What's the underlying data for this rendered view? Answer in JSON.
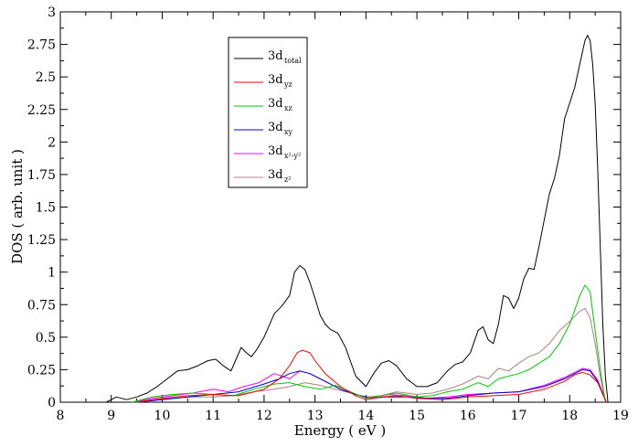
{
  "chart_data": {
    "type": "line",
    "title": "",
    "xlabel": "Energy ( eV )",
    "ylabel": "DOS ( arb. unit )",
    "xlim": [
      8,
      19
    ],
    "ylim": [
      0,
      3
    ],
    "xticks": [
      "8",
      "9",
      "10",
      "11",
      "12",
      "13",
      "14",
      "15",
      "16",
      "17",
      "18",
      "19"
    ],
    "yticks": [
      "0",
      "0.25",
      "0.5",
      "0.75",
      "1",
      "1.25",
      "1.5",
      "1.75",
      "2",
      "2.25",
      "2.5",
      "2.75",
      "3"
    ],
    "grid": false,
    "legend_position": "top-left",
    "series": [
      {
        "label_main": "3d",
        "label_sub": "total",
        "color": "#000000",
        "x": [
          8.9,
          9.0,
          9.1,
          9.2,
          9.3,
          9.5,
          9.7,
          9.9,
          10.1,
          10.3,
          10.5,
          10.7,
          10.9,
          11.05,
          11.2,
          11.35,
          11.45,
          11.55,
          11.65,
          11.75,
          11.85,
          12.0,
          12.2,
          12.35,
          12.5,
          12.6,
          12.7,
          12.8,
          12.9,
          13.0,
          13.1,
          13.2,
          13.3,
          13.45,
          13.6,
          13.8,
          14.0,
          14.15,
          14.3,
          14.45,
          14.6,
          14.8,
          15.0,
          15.2,
          15.4,
          15.6,
          15.75,
          15.9,
          16.05,
          16.2,
          16.3,
          16.4,
          16.5,
          16.6,
          16.7,
          16.8,
          16.9,
          17.0,
          17.1,
          17.2,
          17.3,
          17.4,
          17.5,
          17.6,
          17.7,
          17.8,
          17.9,
          18.0,
          18.1,
          18.2,
          18.3,
          18.35,
          18.4,
          18.45,
          18.5,
          18.55,
          18.6,
          18.65,
          18.7,
          18.75
        ],
        "y": [
          0.0,
          0.02,
          0.04,
          0.03,
          0.02,
          0.04,
          0.07,
          0.12,
          0.18,
          0.24,
          0.25,
          0.28,
          0.32,
          0.33,
          0.28,
          0.24,
          0.33,
          0.42,
          0.38,
          0.35,
          0.4,
          0.5,
          0.68,
          0.74,
          0.82,
          1.0,
          1.05,
          1.02,
          0.92,
          0.8,
          0.67,
          0.6,
          0.56,
          0.53,
          0.42,
          0.2,
          0.12,
          0.22,
          0.3,
          0.32,
          0.28,
          0.18,
          0.12,
          0.12,
          0.15,
          0.24,
          0.29,
          0.31,
          0.38,
          0.55,
          0.58,
          0.48,
          0.45,
          0.6,
          0.82,
          0.8,
          0.72,
          0.8,
          0.95,
          1.03,
          1.02,
          1.2,
          1.4,
          1.6,
          1.72,
          1.9,
          2.18,
          2.3,
          2.42,
          2.6,
          2.78,
          2.82,
          2.78,
          2.6,
          2.3,
          1.8,
          1.2,
          0.6,
          0.2,
          0.0
        ]
      },
      {
        "label_main": "3d",
        "label_sub": "yz",
        "color": "#ff0000",
        "x": [
          9.5,
          10.0,
          10.5,
          11.0,
          11.5,
          12.0,
          12.3,
          12.5,
          12.65,
          12.75,
          12.9,
          13.0,
          13.2,
          13.5,
          13.8,
          14.0,
          14.3,
          14.6,
          15.0,
          15.5,
          16.0,
          16.5,
          17.0,
          17.5,
          17.9,
          18.1,
          18.25,
          18.4,
          18.55,
          18.65,
          18.72
        ],
        "y": [
          0.0,
          0.03,
          0.05,
          0.06,
          0.05,
          0.1,
          0.18,
          0.28,
          0.38,
          0.4,
          0.38,
          0.32,
          0.22,
          0.12,
          0.05,
          0.02,
          0.04,
          0.05,
          0.03,
          0.02,
          0.04,
          0.05,
          0.06,
          0.1,
          0.16,
          0.21,
          0.23,
          0.21,
          0.15,
          0.06,
          0.0
        ]
      },
      {
        "label_main": "3d",
        "label_sub": "xz",
        "color": "#00cc00",
        "x": [
          9.4,
          9.8,
          10.2,
          10.6,
          11.0,
          11.4,
          11.8,
          12.2,
          12.5,
          12.8,
          13.1,
          13.4,
          13.7,
          14.0,
          14.3,
          14.6,
          15.0,
          15.3,
          15.6,
          15.9,
          16.2,
          16.4,
          16.6,
          16.8,
          17.0,
          17.2,
          17.4,
          17.6,
          17.8,
          18.0,
          18.2,
          18.3,
          18.4,
          18.5,
          18.6,
          18.7
        ],
        "y": [
          0.0,
          0.04,
          0.06,
          0.07,
          0.06,
          0.05,
          0.1,
          0.14,
          0.15,
          0.12,
          0.1,
          0.13,
          0.08,
          0.03,
          0.05,
          0.07,
          0.04,
          0.05,
          0.08,
          0.1,
          0.15,
          0.12,
          0.18,
          0.2,
          0.22,
          0.25,
          0.3,
          0.35,
          0.45,
          0.6,
          0.82,
          0.9,
          0.85,
          0.55,
          0.25,
          0.0
        ]
      },
      {
        "label_main": "3d",
        "label_sub": "xy",
        "color": "#0000cc",
        "x": [
          9.5,
          10.0,
          10.5,
          11.0,
          11.5,
          12.0,
          12.3,
          12.5,
          12.7,
          12.9,
          13.2,
          13.5,
          13.8,
          14.1,
          14.4,
          14.8,
          15.2,
          15.6,
          16.0,
          16.5,
          17.0,
          17.5,
          17.9,
          18.1,
          18.25,
          18.4,
          18.55,
          18.65,
          18.72
        ],
        "y": [
          0.0,
          0.02,
          0.04,
          0.06,
          0.08,
          0.14,
          0.18,
          0.22,
          0.24,
          0.22,
          0.16,
          0.1,
          0.06,
          0.03,
          0.04,
          0.04,
          0.03,
          0.03,
          0.05,
          0.07,
          0.08,
          0.12,
          0.18,
          0.22,
          0.25,
          0.24,
          0.16,
          0.06,
          0.0
        ]
      },
      {
        "label_main": "3d",
        "label_sub": "x²-y²",
        "color": "#ff00ff",
        "x": [
          9.4,
          9.8,
          10.2,
          10.6,
          11.0,
          11.3,
          11.6,
          11.9,
          12.2,
          12.5,
          12.7,
          12.9,
          13.2,
          13.5,
          13.8,
          14.1,
          14.4,
          14.8,
          15.2,
          15.6,
          16.0,
          16.5,
          17.0,
          17.5,
          17.9,
          18.1,
          18.25,
          18.4,
          18.55,
          18.65,
          18.72
        ],
        "y": [
          0.0,
          0.03,
          0.05,
          0.07,
          0.1,
          0.08,
          0.12,
          0.15,
          0.22,
          0.18,
          0.24,
          0.22,
          0.16,
          0.1,
          0.06,
          0.03,
          0.06,
          0.05,
          0.03,
          0.04,
          0.06,
          0.07,
          0.08,
          0.13,
          0.19,
          0.23,
          0.26,
          0.25,
          0.17,
          0.07,
          0.0
        ]
      },
      {
        "label_main": "3d",
        "label_sub": "z²",
        "color": "#b08080",
        "x": [
          9.4,
          9.8,
          10.2,
          10.6,
          11.0,
          11.4,
          11.8,
          12.2,
          12.5,
          12.8,
          13.1,
          13.4,
          13.7,
          14.0,
          14.3,
          14.6,
          15.0,
          15.3,
          15.6,
          15.9,
          16.2,
          16.4,
          16.6,
          16.8,
          17.0,
          17.2,
          17.4,
          17.6,
          17.8,
          18.0,
          18.2,
          18.3,
          18.4,
          18.5,
          18.6,
          18.7
        ],
        "y": [
          0.0,
          0.02,
          0.03,
          0.04,
          0.04,
          0.05,
          0.08,
          0.1,
          0.12,
          0.15,
          0.13,
          0.1,
          0.07,
          0.04,
          0.05,
          0.08,
          0.06,
          0.07,
          0.1,
          0.14,
          0.2,
          0.18,
          0.26,
          0.24,
          0.3,
          0.35,
          0.38,
          0.45,
          0.55,
          0.62,
          0.7,
          0.72,
          0.65,
          0.45,
          0.2,
          0.0
        ]
      }
    ]
  }
}
